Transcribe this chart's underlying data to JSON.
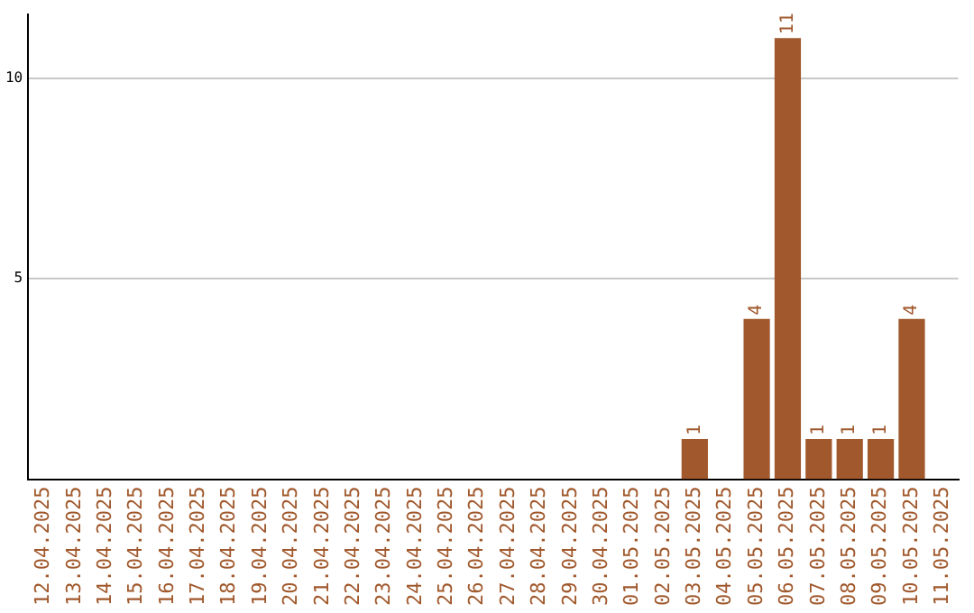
{
  "chart_data": {
    "type": "bar",
    "categories": [
      "12.04.2025",
      "13.04.2025",
      "14.04.2025",
      "15.04.2025",
      "16.04.2025",
      "17.04.2025",
      "18.04.2025",
      "19.04.2025",
      "20.04.2025",
      "21.04.2025",
      "22.04.2025",
      "23.04.2025",
      "24.04.2025",
      "25.04.2025",
      "26.04.2025",
      "27.04.2025",
      "28.04.2025",
      "29.04.2025",
      "30.04.2025",
      "01.05.2025",
      "02.05.2025",
      "03.05.2025",
      "04.05.2025",
      "05.05.2025",
      "06.05.2025",
      "07.05.2025",
      "08.05.2025",
      "09.05.2025",
      "10.05.2025",
      "11.05.2025"
    ],
    "values": [
      0,
      0,
      0,
      0,
      0,
      0,
      0,
      0,
      0,
      0,
      0,
      0,
      0,
      0,
      0,
      0,
      0,
      0,
      0,
      0,
      0,
      1,
      0,
      4,
      11,
      1,
      1,
      1,
      4,
      0
    ],
    "value_labels": [
      null,
      null,
      null,
      null,
      null,
      null,
      null,
      null,
      null,
      null,
      null,
      null,
      null,
      null,
      null,
      null,
      null,
      null,
      null,
      null,
      null,
      "1",
      null,
      "4",
      "11",
      "1",
      "1",
      "1",
      "4",
      null
    ],
    "color": "#a0582c",
    "ylim": [
      0,
      11.6
    ],
    "yticks": [
      5,
      10
    ],
    "grid": "y",
    "legend": false
  }
}
